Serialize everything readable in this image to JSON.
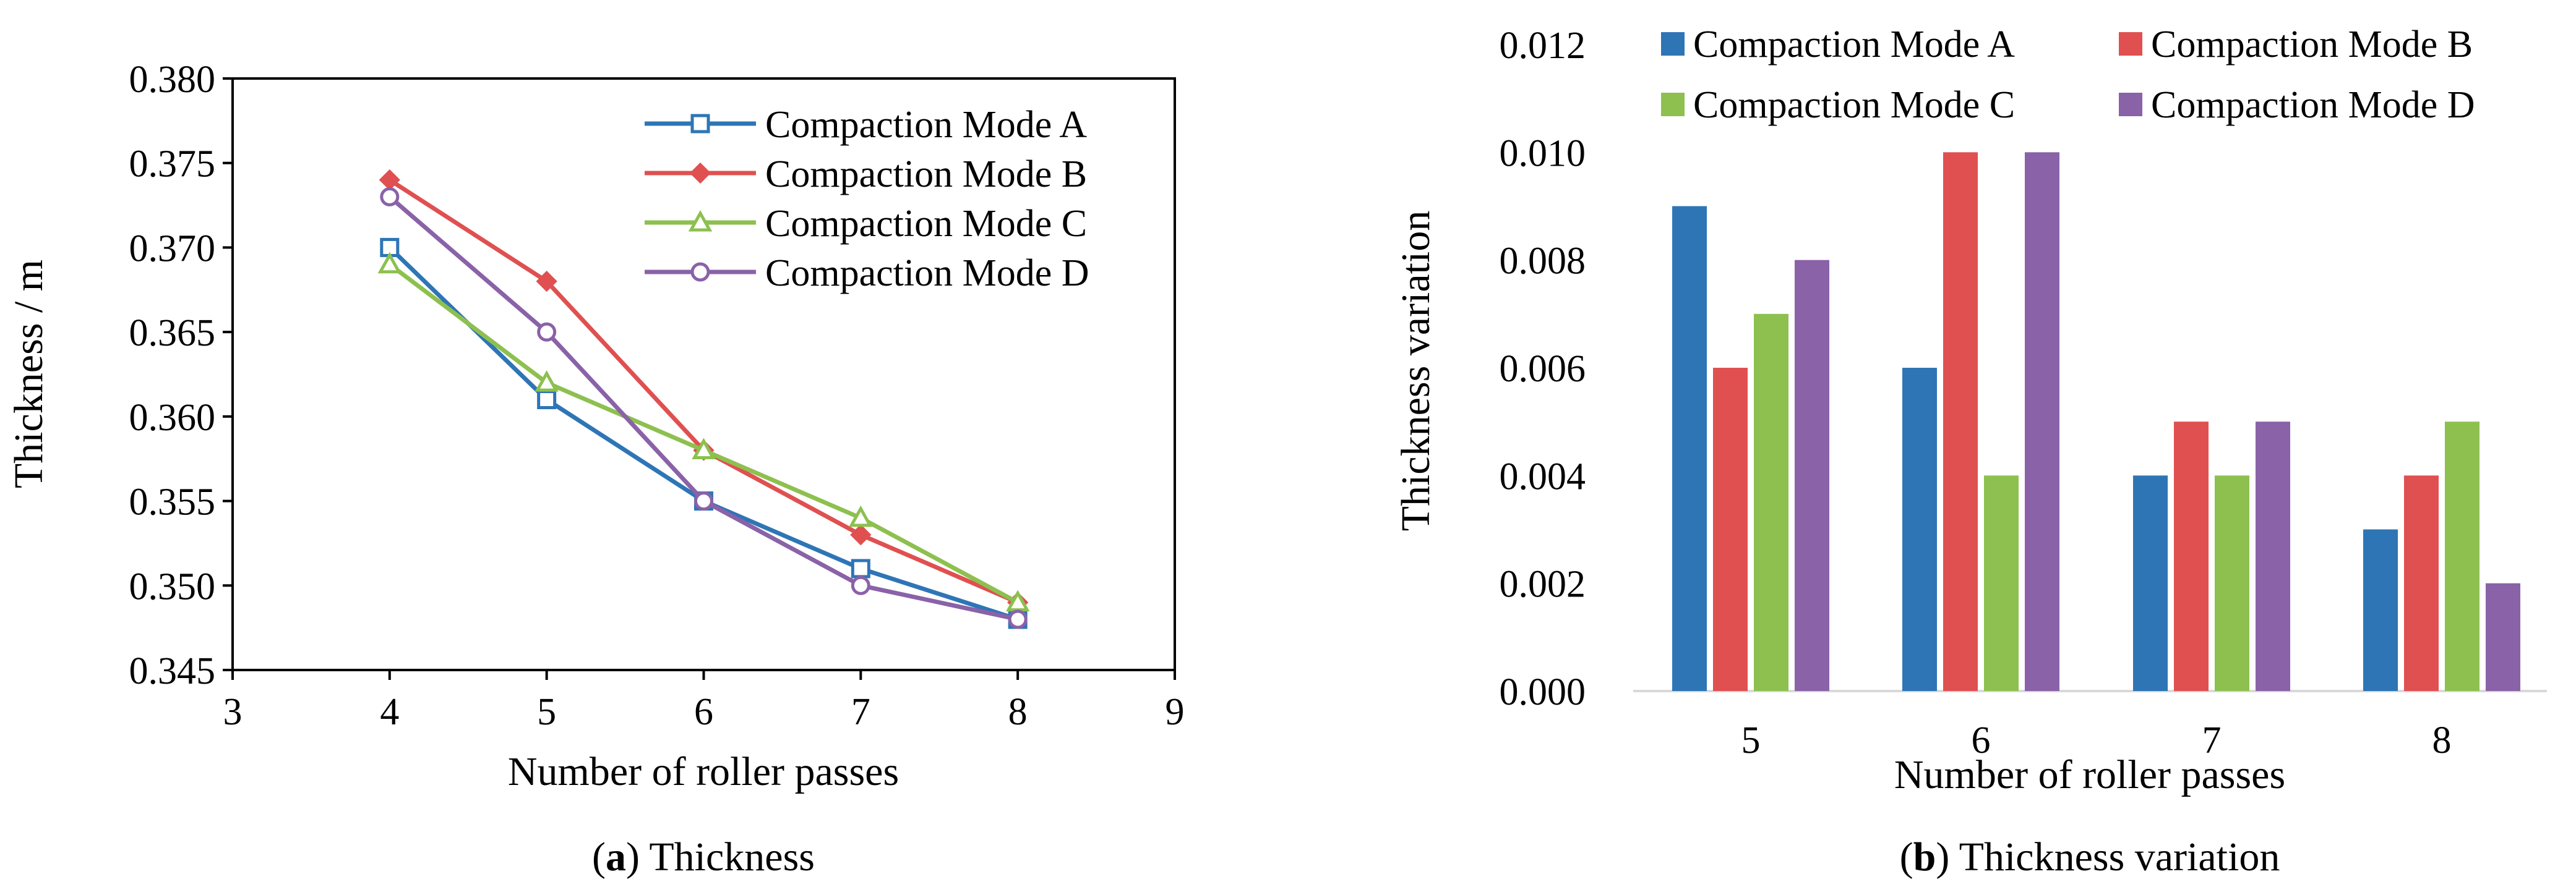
{
  "panel_a": {
    "caption_letter": "a",
    "caption_text": "Thickness"
  },
  "panel_b": {
    "caption_letter": "b",
    "caption_text": "Thickness variation"
  },
  "chart_data": [
    {
      "type": "line",
      "title": "",
      "xlabel": "Number of roller passes",
      "ylabel": "Thickness / m",
      "xlim": [
        3,
        9
      ],
      "ylim": [
        0.345,
        0.38
      ],
      "x_ticks": [
        "3",
        "4",
        "5",
        "6",
        "7",
        "8",
        "9"
      ],
      "y_ticks": [
        "0.345",
        "0.350",
        "0.355",
        "0.360",
        "0.365",
        "0.370",
        "0.375",
        "0.380"
      ],
      "grid": false,
      "legend": "top-right inside",
      "x": [
        4,
        5,
        6,
        7,
        8
      ],
      "series": [
        {
          "name": "Compaction Mode A",
          "color": "#2E75B6",
          "marker": "square",
          "values": [
            0.37,
            0.361,
            0.355,
            0.351,
            0.348
          ]
        },
        {
          "name": "Compaction Mode B",
          "color": "#E05050",
          "marker": "diamond",
          "values": [
            0.374,
            0.368,
            0.358,
            0.353,
            0.349
          ]
        },
        {
          "name": "Compaction Mode C",
          "color": "#8DC04F",
          "marker": "triangle",
          "values": [
            0.369,
            0.362,
            0.358,
            0.354,
            0.349
          ]
        },
        {
          "name": "Compaction Mode D",
          "color": "#8A62A8",
          "marker": "circle",
          "values": [
            0.373,
            0.365,
            0.355,
            0.35,
            0.348
          ]
        }
      ]
    },
    {
      "type": "bar",
      "title": "",
      "xlabel": "Number of roller passes",
      "ylabel": "Thickness variation",
      "ylim": [
        0,
        0.012
      ],
      "y_ticks": [
        "0.000",
        "0.002",
        "0.004",
        "0.006",
        "0.008",
        "0.010",
        "0.012"
      ],
      "grid": false,
      "legend": "top",
      "categories": [
        "5",
        "6",
        "7",
        "8"
      ],
      "series": [
        {
          "name": "Compaction Mode A",
          "color": "#2E75B6",
          "values": [
            0.009,
            0.006,
            0.004,
            0.003
          ]
        },
        {
          "name": "Compaction Mode B",
          "color": "#E05050",
          "values": [
            0.006,
            0.01,
            0.005,
            0.004
          ]
        },
        {
          "name": "Compaction Mode C",
          "color": "#8DC04F",
          "values": [
            0.007,
            0.004,
            0.004,
            0.005
          ]
        },
        {
          "name": "Compaction Mode D",
          "color": "#8A62A8",
          "values": [
            0.008,
            0.01,
            0.005,
            0.002
          ]
        }
      ]
    }
  ]
}
